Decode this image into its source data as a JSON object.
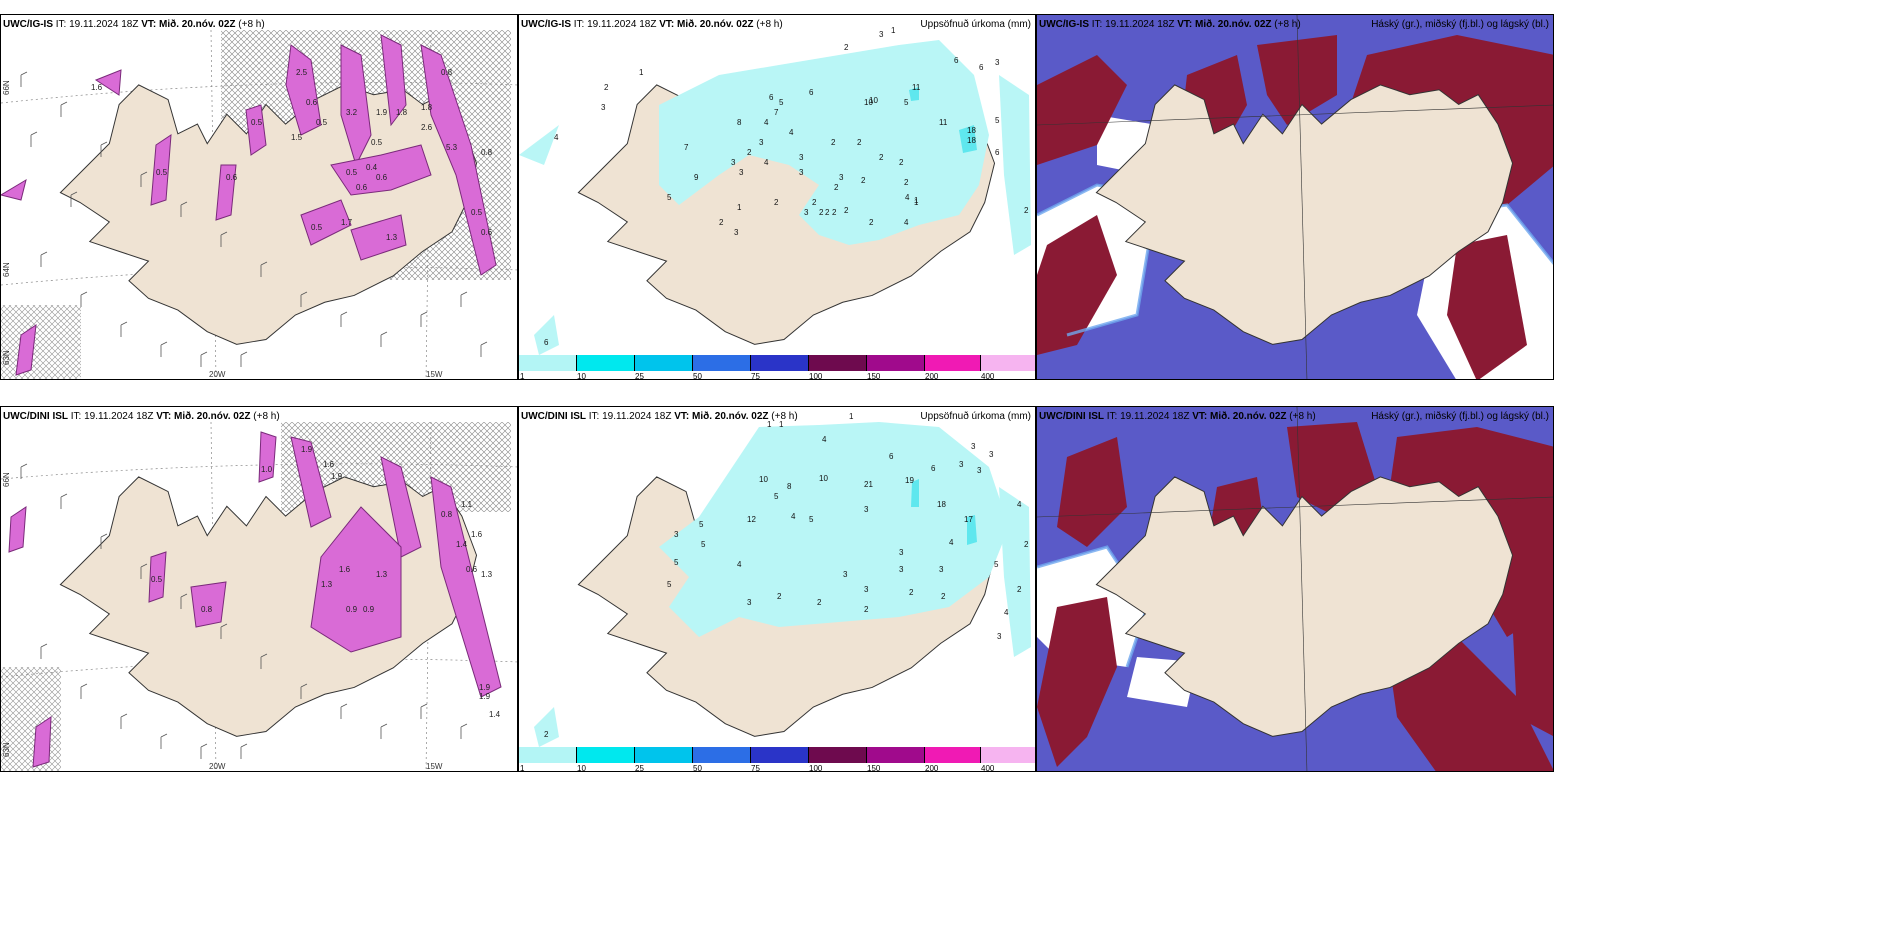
{
  "panels": [
    {
      "model": "UWC/IG-IS",
      "it": "IT: 19.11.2024 18Z",
      "vt": "VT: Mið. 20.nóv. 02Z",
      "lead": "(+8 h)",
      "right": ""
    },
    {
      "model": "UWC/IG-IS",
      "it": "IT: 19.11.2024 18Z",
      "vt": "VT: Mið. 20.nóv. 02Z",
      "lead": "(+8 h)",
      "right": "Uppsöfnuð úrkoma (mm)"
    },
    {
      "model": "UWC/IG-IS",
      "it": "IT: 19.11.2024 18Z",
      "vt": "VT: Mið. 20.nóv. 02Z",
      "lead": "(+8 h)",
      "right": "Háský (gr.), miðský (fj.bl.) og lágský (bl.)"
    },
    {
      "model": "UWC/DINI ISL",
      "it": "IT: 19.11.2024 18Z",
      "vt": "VT: Mið. 20.nóv. 02Z",
      "lead": "(+8 h)",
      "right": ""
    },
    {
      "model": "UWC/DINI ISL",
      "it": "IT: 19.11.2024 18Z",
      "vt": "VT: Mið. 20.nóv. 02Z",
      "lead": "(+8 h)",
      "right": "Uppsöfnuð úrkoma (mm)"
    },
    {
      "model": "UWC/DINI ISL",
      "it": "IT: 19.11.2024 18Z",
      "vt": "VT: Mið. 20.nóv. 02Z",
      "lead": "(+8 h)",
      "right": "Háský (gr.), miðský (fj.bl.) og lágský (bl.)"
    }
  ],
  "axes": {
    "lon_a": "20W",
    "lon_b": "15W",
    "lat_a": "66N",
    "lat_b": "64N",
    "lat_c": "63N"
  },
  "colorbar": {
    "labels": [
      "1",
      "10",
      "25",
      "50",
      "75",
      "100",
      "150",
      "200",
      "400"
    ],
    "colors": [
      "#b3f5f5",
      "#00e8ee",
      "#00c4ec",
      "#2c6ee6",
      "#2a34c8",
      "#6e0a4e",
      "#a00a8c",
      "#f01ab4",
      "#f6b4f0"
    ]
  },
  "palette": {
    "land": "#efe3d3",
    "precipLight": "#b9f6f6",
    "precipMid": "#5fe7ee",
    "magenta": "#d96bd6",
    "magentaDark": "#7a2a7a",
    "cloudHigh": "#8a1a34",
    "cloudMid": "#5a5ac8",
    "cloudLow": "#2c2c9a",
    "cloudEdge": "#6fa8ef"
  },
  "top_precip_labels": [
    "2",
    "3",
    "1",
    "1",
    "2",
    "3",
    "4",
    "6",
    "6",
    "3",
    "6",
    "7",
    "8",
    "4",
    "5",
    "6",
    "10",
    "5",
    "4",
    "2",
    "2",
    "3",
    "2",
    "3",
    "3",
    "2",
    "5",
    "11",
    "10",
    "11",
    "18",
    "18",
    "5",
    "6",
    "9",
    "3",
    "4",
    "7",
    "3",
    "3",
    "2",
    "2",
    "2",
    "2",
    "1",
    "2",
    "4",
    "1",
    "2",
    "2",
    "2",
    "2",
    "2",
    "4",
    "3",
    "2",
    "3",
    "2",
    "1",
    "2",
    "6"
  ],
  "top_values_left": [
    "2.5",
    "0.6",
    "0.5",
    "1.5",
    "3.2",
    "1.9",
    "1.8",
    "2.6",
    "5.3",
    "0.8",
    "0.5",
    "0.6",
    "0.4",
    "0.5",
    "0.6",
    "0.5",
    "1.3",
    "0.5",
    "1.7",
    "0.8",
    "0.5",
    "0.6",
    "1.6",
    "0.5",
    "1.8",
    "0.6"
  ],
  "bottom_values_left": [
    "1.0",
    "1.9",
    "1.6",
    "1.9",
    "1.3",
    "1.6",
    "0.9",
    "0.8",
    "0.5",
    "1.3",
    "1.6",
    "0.8",
    "0.9",
    "1.4",
    "1.1",
    "1.9",
    "0.6",
    "1.3",
    "1.9",
    "1.4"
  ],
  "bottom_precip_labels": [
    "1",
    "1",
    "1",
    "4",
    "3",
    "6",
    "3",
    "3",
    "3",
    "10",
    "5",
    "8",
    "10",
    "21",
    "19",
    "6",
    "18",
    "17",
    "12",
    "3",
    "5",
    "5",
    "4",
    "5",
    "5",
    "4",
    "5",
    "3",
    "3",
    "3",
    "2",
    "3",
    "2",
    "3",
    "2",
    "4",
    "5",
    "3",
    "2",
    "4",
    "2",
    "3",
    "2",
    "3",
    "4",
    "2",
    "2"
  ]
}
